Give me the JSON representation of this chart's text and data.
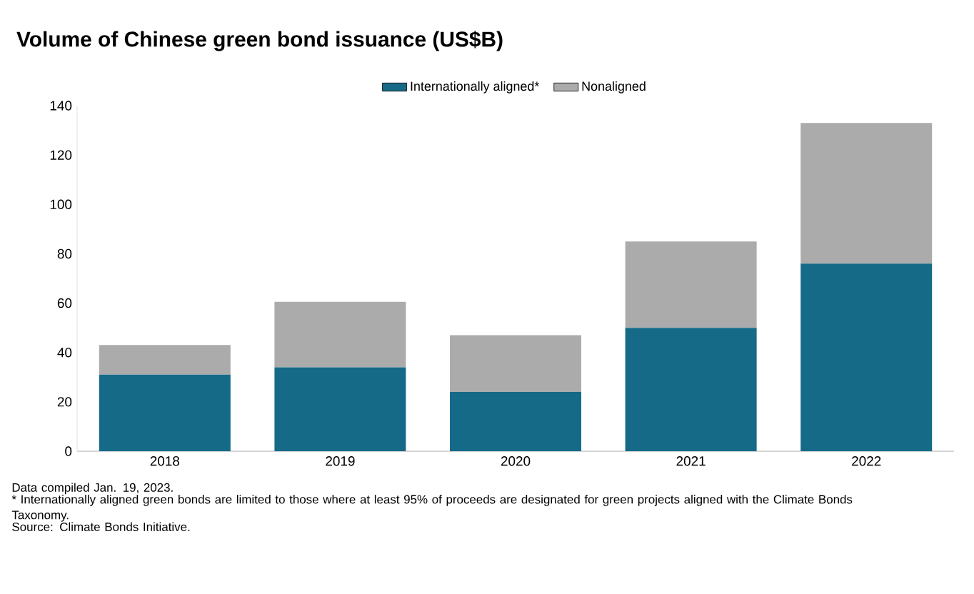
{
  "chart_data": {
    "type": "bar",
    "title": "Volume of Chinese green bond issuance (US$B)",
    "categories": [
      "2018",
      "2019",
      "2020",
      "2021",
      "2022"
    ],
    "series": [
      {
        "name": "Internationally aligned*",
        "color": "#156a87",
        "values": [
          31,
          34,
          24,
          50,
          76
        ]
      },
      {
        "name": "Nonaligned",
        "color": "#ababab",
        "values": [
          12,
          26.5,
          23,
          35,
          57
        ]
      }
    ],
    "stacked": true,
    "ylim": [
      0,
      140
    ],
    "yticks": [
      0,
      20,
      40,
      60,
      80,
      100,
      120,
      140
    ],
    "legend": "top",
    "annotations": [
      "Data compiled Jan. 19, 2023.",
      "* Internationally aligned green bonds are limited to those where at least 95% of proceeds are designated for green projects aligned with the Climate Bonds Taxonomy.",
      "Source: Climate Bonds Initiative."
    ]
  }
}
